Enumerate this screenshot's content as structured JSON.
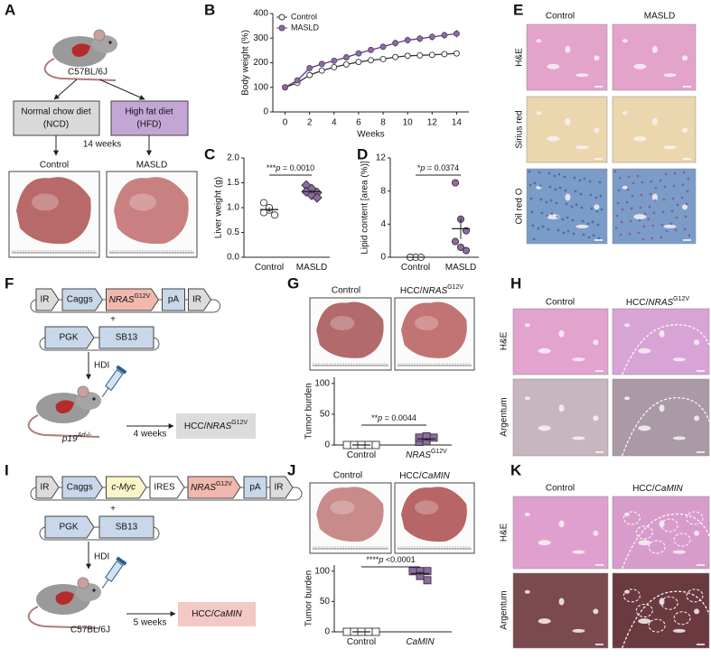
{
  "panel_labels": [
    "A",
    "B",
    "C",
    "D",
    "E",
    "F",
    "G",
    "H",
    "I",
    "J",
    "K"
  ],
  "panel_a": {
    "strain": "C57BL/6J",
    "diet_1": [
      "Normal chow diet",
      "(NCD)"
    ],
    "diet_2": [
      "High fat diet",
      "(HFD)"
    ],
    "duration": "14 weeks",
    "groups": [
      "Control",
      "MASLD"
    ]
  },
  "panel_e": {
    "columns": [
      "Control",
      "MASLD"
    ],
    "rows": [
      "H&E",
      "Sirius red",
      "Oil red O"
    ]
  },
  "panel_f": {
    "construct": [
      "IR",
      "Caggs",
      "NRAS",
      "pA",
      "IR"
    ],
    "construct_sup": "G12V",
    "plus": "+",
    "helper": [
      "PGK",
      "SB13"
    ],
    "method": "HDI",
    "mouse": [
      "p19",
      "Arf-/-"
    ],
    "duration": "4 weeks",
    "model": [
      "HCC/",
      "NRAS",
      "G12V"
    ]
  },
  "panel_g": {
    "columns": [
      "Control"
    ],
    "model": [
      "HCC/",
      "NRAS",
      "G12V"
    ]
  },
  "panel_h": {
    "columns": [
      "Control"
    ],
    "model": [
      "HCC/",
      "NRAS",
      "G12V"
    ],
    "rows": [
      "H&E",
      "Argentum"
    ]
  },
  "panel_i": {
    "construct": [
      "IR",
      "Caggs",
      "c-Myc",
      "IRES",
      "NRAS",
      "pA",
      "IR"
    ],
    "construct_sup": "G12V",
    "plus": "+",
    "helper": [
      "PGK",
      "SB13"
    ],
    "method": "HDI",
    "strain": "C57BL/6J",
    "duration": "5 weeks",
    "model": [
      "HCC/",
      "CaMIN"
    ]
  },
  "panel_j": {
    "columns": [
      "Control"
    ],
    "model": [
      "HCC/",
      "CaMIN"
    ]
  },
  "panel_k": {
    "columns": [
      "Control"
    ],
    "model": [
      "HCC/",
      "CaMIN"
    ],
    "rows": [
      "H&E",
      "Argentum"
    ]
  },
  "chart_data": [
    {
      "type": "line",
      "ylabel": "Body weight (%)",
      "xlabel": "Weeks",
      "x": [
        0,
        1,
        2,
        3,
        4,
        5,
        6,
        7,
        8,
        9,
        10,
        11,
        12,
        13,
        14
      ],
      "xlim": [
        -1,
        15
      ],
      "xticks": [
        0,
        2,
        4,
        6,
        8,
        10,
        12,
        14
      ],
      "ylim": [
        0,
        400
      ],
      "yticks": [
        0,
        100,
        200,
        300,
        400
      ],
      "legend": "upper left",
      "series": [
        {
          "name": "Control",
          "color": "#ffffff",
          "edge": "#333333",
          "values": [
            100,
            118,
            150,
            168,
            182,
            193,
            203,
            210,
            215,
            223,
            228,
            230,
            232,
            235,
            238
          ],
          "errors": [
            3,
            5,
            8,
            8,
            9,
            10,
            10,
            11,
            11,
            12,
            12,
            12,
            12,
            12,
            12
          ]
        },
        {
          "name": "MASLD",
          "color": "#8e6aa6",
          "edge": "#5a3f70",
          "values": [
            100,
            128,
            178,
            195,
            208,
            222,
            238,
            252,
            265,
            280,
            292,
            298,
            305,
            312,
            318
          ],
          "errors": [
            3,
            6,
            8,
            9,
            10,
            11,
            12,
            12,
            13,
            14,
            14,
            14,
            14,
            14,
            15
          ]
        }
      ]
    },
    {
      "type": "dot",
      "ylabel": "Liver weight (g)",
      "categories": [
        "Control",
        "MASLD"
      ],
      "ylim": [
        0,
        2
      ],
      "yticks": [
        {
          "value": 0,
          "label": "0.0"
        },
        0.5,
        {
          "value": 1,
          "label": "1.0"
        },
        1.5,
        {
          "value": 2,
          "label": "2.0"
        }
      ],
      "groups": [
        {
          "values": [
            1.1,
            0.95,
            0.85,
            0.9,
            1.0
          ],
          "mean": 0.96,
          "sem": 0.05,
          "marker": "circle",
          "color": "#ffffff"
        },
        {
          "values": [
            1.45,
            1.38,
            1.3,
            1.32,
            1.25,
            1.2
          ],
          "mean": 1.32,
          "sem": 0.04,
          "marker": "diamond",
          "color": "#8e6aa6"
        }
      ],
      "annotation": [
        "***",
        "p",
        " = 0.0010"
      ]
    },
    {
      "type": "dot",
      "ylabel": "Lipid content [area (%)]",
      "categories": [
        "Control",
        "MASLD"
      ],
      "ylim": [
        0,
        12
      ],
      "yticks": [
        0,
        4,
        8,
        12
      ],
      "groups": [
        {
          "values": [
            0,
            0,
            0,
            0
          ],
          "mean": 0,
          "sem": 0,
          "marker": "circle",
          "color": "#ffffff"
        },
        {
          "values": [
            9,
            4.6,
            3.2,
            1.9,
            1.2,
            0.8
          ],
          "mean": 3.45,
          "sem": 1.25,
          "marker": "circle",
          "color": "#8e6aa6"
        }
      ],
      "annotation": [
        "*",
        "p",
        " = 0.0374"
      ]
    },
    {
      "type": "dot",
      "ylabel": "Tumor burden",
      "categories": [
        "Control",
        {
          "text": "NRAS",
          "sup": "G12V"
        }
      ],
      "italic_categories": [
        false,
        true
      ],
      "ylim": [
        0,
        110
      ],
      "yticks": [
        0,
        50,
        100
      ],
      "groups": [
        {
          "values": [
            0,
            0,
            0,
            0,
            0
          ],
          "mean": 0,
          "sem": 0,
          "marker": "square",
          "color": "#ffffff"
        },
        {
          "values": [
            5,
            6,
            12,
            12,
            14
          ],
          "mean": 9.8,
          "sem": 1.9,
          "marker": "square",
          "color": "#8e6aa6"
        }
      ],
      "annotation": [
        "**",
        "p",
        " = 0.0044"
      ]
    },
    {
      "type": "dot",
      "ylabel": "Tumor burden",
      "categories": [
        "Control",
        "CaMIN"
      ],
      "italic_categories": [
        false,
        true
      ],
      "ylim": [
        0,
        110
      ],
      "yticks": [
        0,
        50,
        100
      ],
      "groups": [
        {
          "values": [
            0,
            0,
            0,
            0,
            0
          ],
          "mean": 0,
          "sem": 0,
          "marker": "square",
          "color": "#ffffff"
        },
        {
          "values": [
            100,
            100,
            100,
            100,
            92,
            85
          ],
          "mean": 96,
          "sem": 2.6,
          "marker": "square",
          "color": "#8e6aa6"
        }
      ],
      "annotation": [
        "****",
        "p",
        " <0.0001"
      ]
    }
  ]
}
